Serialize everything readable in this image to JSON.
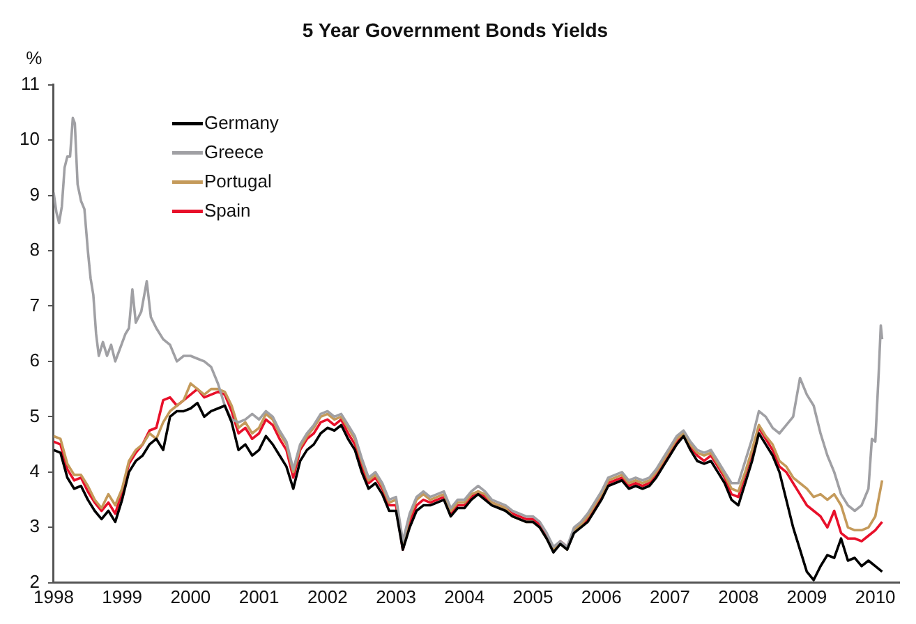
{
  "chart_data": {
    "type": "line",
    "title": "5 Year Government Bonds Yields",
    "ylabel": "%",
    "x": [
      1998.0,
      1998.1,
      1998.2,
      1998.3,
      1998.4,
      1998.5,
      1998.6,
      1998.7,
      1998.8,
      1998.9,
      1999.0,
      1999.1,
      1999.2,
      1999.3,
      1999.4,
      1999.5,
      1999.6,
      1999.7,
      1999.8,
      1999.9,
      2000.0,
      2000.1,
      2000.2,
      2000.3,
      2000.4,
      2000.5,
      2000.6,
      2000.7,
      2000.8,
      2000.9,
      2001.0,
      2001.1,
      2001.2,
      2001.3,
      2001.4,
      2001.5,
      2001.6,
      2001.7,
      2001.8,
      2001.9,
      2002.0,
      2002.1,
      2002.2,
      2002.3,
      2002.4,
      2002.5,
      2002.6,
      2002.7,
      2002.8,
      2002.9,
      2003.0,
      2003.1,
      2003.2,
      2003.3,
      2003.4,
      2003.5,
      2003.6,
      2003.7,
      2003.8,
      2003.9,
      2004.0,
      2004.1,
      2004.2,
      2004.3,
      2004.4,
      2004.5,
      2004.6,
      2004.7,
      2004.8,
      2004.9,
      2005.0,
      2005.1,
      2005.2,
      2005.3,
      2005.4,
      2005.5,
      2005.6,
      2005.7,
      2005.8,
      2005.9,
      2006.0,
      2006.1,
      2006.2,
      2006.3,
      2006.4,
      2006.5,
      2006.6,
      2006.7,
      2006.8,
      2006.9,
      2007.0,
      2007.1,
      2007.2,
      2007.3,
      2007.4,
      2007.5,
      2007.6,
      2007.7,
      2007.8,
      2007.9,
      2008.0,
      2008.1,
      2008.2,
      2008.3,
      2008.4,
      2008.5,
      2008.6,
      2008.7,
      2008.8,
      2008.9,
      2009.0,
      2009.1,
      2009.2,
      2009.3,
      2009.4,
      2009.5,
      2009.6,
      2009.7,
      2009.8,
      2009.9,
      2010.0,
      2010.1
    ],
    "series": [
      {
        "name": "Germany",
        "color": "#000000",
        "values": [
          4.4,
          4.35,
          3.9,
          3.7,
          3.75,
          3.5,
          3.3,
          3.15,
          3.3,
          3.1,
          3.5,
          4.0,
          4.2,
          4.3,
          4.5,
          4.6,
          4.4,
          5.0,
          5.1,
          5.1,
          5.15,
          5.25,
          5.0,
          5.1,
          5.15,
          5.2,
          4.9,
          4.4,
          4.5,
          4.3,
          4.4,
          4.65,
          4.5,
          4.3,
          4.1,
          3.7,
          4.2,
          4.4,
          4.5,
          4.7,
          4.8,
          4.75,
          4.85,
          4.6,
          4.4,
          4.0,
          3.7,
          3.8,
          3.6,
          3.3,
          3.3,
          2.6,
          3.0,
          3.3,
          3.4,
          3.4,
          3.45,
          3.5,
          3.2,
          3.35,
          3.35,
          3.5,
          3.6,
          3.5,
          3.4,
          3.35,
          3.3,
          3.2,
          3.15,
          3.1,
          3.1,
          3.0,
          2.8,
          2.55,
          2.7,
          2.6,
          2.9,
          3.0,
          3.1,
          3.3,
          3.5,
          3.75,
          3.8,
          3.85,
          3.7,
          3.75,
          3.7,
          3.75,
          3.9,
          4.1,
          4.3,
          4.5,
          4.65,
          4.4,
          4.2,
          4.15,
          4.2,
          4.0,
          3.8,
          3.5,
          3.4,
          3.8,
          4.2,
          4.7,
          4.5,
          4.3,
          4.0,
          3.5,
          3.0,
          2.6,
          2.2,
          2.05,
          2.3,
          2.5,
          2.45,
          2.8,
          2.4,
          2.45,
          2.3,
          2.4,
          2.3,
          2.2
        ]
      },
      {
        "name": "Greece",
        "color": "#a0a0a4",
        "x": [
          1998.0,
          1998.04,
          1998.08,
          1998.12,
          1998.16,
          1998.2,
          1998.24,
          1998.28,
          1998.31,
          1998.35,
          1998.4,
          1998.45,
          1998.5,
          1998.54,
          1998.58,
          1998.62,
          1998.66,
          1998.72,
          1998.78,
          1998.84,
          1998.9,
          1998.96,
          1999.05,
          1999.1,
          1999.15,
          1999.2,
          1999.28,
          1999.36,
          1999.42,
          1999.5,
          1999.6,
          1999.7,
          1999.8,
          1999.9,
          2000.0,
          2000.1,
          2000.2,
          2000.3,
          2000.4,
          2000.5,
          2000.6,
          2000.7,
          2000.8,
          2000.9,
          2001.0,
          2001.1,
          2001.2,
          2001.3,
          2001.4,
          2001.5,
          2001.6,
          2001.7,
          2001.8,
          2001.9,
          2002.0,
          2002.1,
          2002.2,
          2002.3,
          2002.4,
          2002.5,
          2002.6,
          2002.7,
          2002.8,
          2002.9,
          2003.0,
          2003.1,
          2003.2,
          2003.3,
          2003.4,
          2003.5,
          2003.6,
          2003.7,
          2003.8,
          2003.9,
          2004.0,
          2004.1,
          2004.2,
          2004.3,
          2004.4,
          2004.5,
          2004.6,
          2004.7,
          2004.8,
          2004.9,
          2005.0,
          2005.1,
          2005.2,
          2005.3,
          2005.4,
          2005.5,
          2005.6,
          2005.7,
          2005.8,
          2005.9,
          2006.0,
          2006.1,
          2006.2,
          2006.3,
          2006.4,
          2006.5,
          2006.6,
          2006.7,
          2006.8,
          2006.9,
          2007.0,
          2007.1,
          2007.2,
          2007.3,
          2007.4,
          2007.5,
          2007.6,
          2007.7,
          2007.8,
          2007.9,
          2008.0,
          2008.1,
          2008.2,
          2008.3,
          2008.4,
          2008.5,
          2008.6,
          2008.7,
          2008.8,
          2008.9,
          2009.0,
          2009.1,
          2009.2,
          2009.3,
          2009.4,
          2009.5,
          2009.6,
          2009.7,
          2009.8,
          2009.9,
          2009.95,
          2010.0,
          2010.05,
          2010.08,
          2010.1
        ],
        "values": [
          9.05,
          8.7,
          8.5,
          8.8,
          9.5,
          9.7,
          9.7,
          10.4,
          10.3,
          9.2,
          8.9,
          8.75,
          8.0,
          7.5,
          7.2,
          6.5,
          6.1,
          6.35,
          6.1,
          6.3,
          6.0,
          6.2,
          6.5,
          6.6,
          7.3,
          6.7,
          6.9,
          7.45,
          6.8,
          6.6,
          6.4,
          6.3,
          6.0,
          6.1,
          6.1,
          6.05,
          6.0,
          5.9,
          5.6,
          5.2,
          4.95,
          4.9,
          4.95,
          5.05,
          4.95,
          5.1,
          5.0,
          4.75,
          4.55,
          4.05,
          4.5,
          4.7,
          4.85,
          5.05,
          5.1,
          5.0,
          5.05,
          4.85,
          4.65,
          4.25,
          3.9,
          4.0,
          3.8,
          3.5,
          3.55,
          2.75,
          3.25,
          3.55,
          3.65,
          3.55,
          3.6,
          3.65,
          3.35,
          3.5,
          3.5,
          3.65,
          3.75,
          3.65,
          3.5,
          3.45,
          3.4,
          3.3,
          3.25,
          3.2,
          3.2,
          3.1,
          2.9,
          2.65,
          2.75,
          2.65,
          3.0,
          3.1,
          3.25,
          3.45,
          3.65,
          3.9,
          3.95,
          4.0,
          3.85,
          3.9,
          3.85,
          3.9,
          4.05,
          4.25,
          4.45,
          4.65,
          4.75,
          4.55,
          4.4,
          4.35,
          4.4,
          4.2,
          4.0,
          3.8,
          3.8,
          4.2,
          4.6,
          5.1,
          5.0,
          4.8,
          4.7,
          4.85,
          5.0,
          5.7,
          5.4,
          5.2,
          4.7,
          4.3,
          4.0,
          3.6,
          3.4,
          3.3,
          3.4,
          3.7,
          4.6,
          4.55,
          5.8,
          6.65,
          6.4
        ]
      },
      {
        "name": "Portugal",
        "color": "#c49a5a",
        "values": [
          4.65,
          4.6,
          4.15,
          3.95,
          3.95,
          3.75,
          3.5,
          3.35,
          3.6,
          3.4,
          3.7,
          4.2,
          4.4,
          4.5,
          4.7,
          4.6,
          4.9,
          5.1,
          5.2,
          5.3,
          5.6,
          5.5,
          5.4,
          5.5,
          5.5,
          5.45,
          5.2,
          4.8,
          4.9,
          4.7,
          4.8,
          5.05,
          4.95,
          4.7,
          4.5,
          4.0,
          4.45,
          4.65,
          4.8,
          5.0,
          5.05,
          4.95,
          5.0,
          4.8,
          4.6,
          4.2,
          3.85,
          3.95,
          3.75,
          3.45,
          3.5,
          2.7,
          3.2,
          3.5,
          3.6,
          3.5,
          3.55,
          3.6,
          3.3,
          3.45,
          3.45,
          3.6,
          3.65,
          3.6,
          3.45,
          3.4,
          3.35,
          3.2,
          3.15,
          3.1,
          3.1,
          3.0,
          2.8,
          2.6,
          2.7,
          2.6,
          2.95,
          3.05,
          3.2,
          3.4,
          3.6,
          3.85,
          3.9,
          3.95,
          3.8,
          3.85,
          3.8,
          3.85,
          4.0,
          4.2,
          4.4,
          4.6,
          4.7,
          4.5,
          4.35,
          4.3,
          4.35,
          4.15,
          3.95,
          3.7,
          3.65,
          4.0,
          4.4,
          4.85,
          4.65,
          4.5,
          4.2,
          4.1,
          3.9,
          3.8,
          3.7,
          3.55,
          3.6,
          3.5,
          3.6,
          3.4,
          3.0,
          2.95,
          2.95,
          3.0,
          3.2,
          3.85
        ]
      },
      {
        "name": "Spain",
        "color": "#e8102a",
        "values": [
          4.55,
          4.5,
          4.05,
          3.85,
          3.9,
          3.65,
          3.45,
          3.3,
          3.45,
          3.25,
          3.65,
          4.15,
          4.35,
          4.5,
          4.75,
          4.8,
          5.3,
          5.35,
          5.2,
          5.3,
          5.4,
          5.5,
          5.35,
          5.4,
          5.45,
          5.4,
          5.1,
          4.7,
          4.8,
          4.6,
          4.7,
          4.95,
          4.85,
          4.6,
          4.4,
          3.9,
          4.4,
          4.6,
          4.7,
          4.9,
          4.95,
          4.85,
          4.95,
          4.7,
          4.5,
          4.1,
          3.8,
          3.9,
          3.7,
          3.4,
          3.4,
          2.6,
          3.1,
          3.4,
          3.5,
          3.45,
          3.5,
          3.55,
          3.25,
          3.4,
          3.4,
          3.55,
          3.65,
          3.55,
          3.45,
          3.4,
          3.35,
          3.25,
          3.2,
          3.15,
          3.15,
          3.05,
          2.85,
          2.6,
          2.75,
          2.65,
          2.95,
          3.05,
          3.15,
          3.35,
          3.55,
          3.8,
          3.85,
          3.9,
          3.75,
          3.8,
          3.75,
          3.8,
          3.95,
          4.15,
          4.35,
          4.55,
          4.7,
          4.45,
          4.3,
          4.2,
          4.3,
          4.1,
          3.9,
          3.6,
          3.55,
          3.95,
          4.35,
          4.8,
          4.6,
          4.4,
          4.1,
          4.0,
          3.8,
          3.6,
          3.4,
          3.3,
          3.2,
          3.0,
          3.3,
          2.9,
          2.8,
          2.8,
          2.75,
          2.85,
          2.95,
          3.1
        ]
      }
    ],
    "xlim": [
      1998,
      2010.35
    ],
    "xticks": [
      1998,
      1999,
      2000,
      2001,
      2002,
      2003,
      2004,
      2005,
      2006,
      2007,
      2008,
      2009,
      2010
    ],
    "ylim": [
      2,
      11
    ],
    "yticks": [
      2,
      3,
      4,
      5,
      6,
      7,
      8,
      9,
      10,
      11
    ],
    "grid": false,
    "legend": "top left"
  }
}
